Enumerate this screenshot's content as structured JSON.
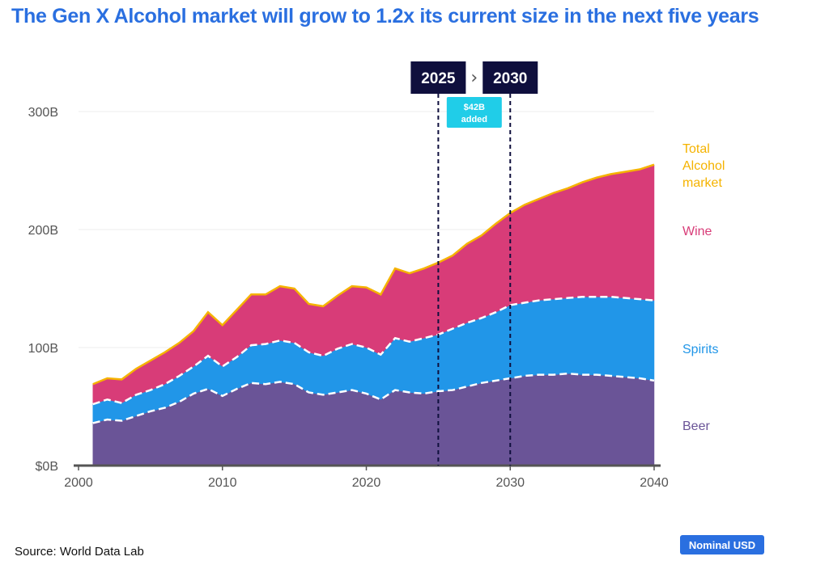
{
  "title": "The Gen X Alcohol market will grow to 1.2x its current size in the next five years",
  "source": "Source: World Data Lab",
  "badge": "Nominal USD",
  "colors": {
    "beer": "#6a5497",
    "spirits": "#2196e8",
    "wine": "#d83c78",
    "total": "#f5b300",
    "axis": "#555555",
    "year_box": "#0f0f3d",
    "added_box": "#20cde8"
  },
  "chart_data": {
    "type": "area",
    "title": "The Gen X Alcohol market will grow to 1.2x its current size in the next five years",
    "stacked": true,
    "xlabel": "",
    "ylabel": "",
    "xlim": [
      2000,
      2040
    ],
    "ylim": [
      0,
      300
    ],
    "y_ticks": [
      {
        "value": 0,
        "label": "$0B"
      },
      {
        "value": 100,
        "label": "100B"
      },
      {
        "value": 200,
        "label": "200B"
      },
      {
        "value": 300,
        "label": "300B"
      }
    ],
    "x_ticks": [
      2000,
      2010,
      2020,
      2030,
      2040
    ],
    "x": [
      2001,
      2002,
      2003,
      2004,
      2005,
      2006,
      2007,
      2008,
      2009,
      2010,
      2011,
      2012,
      2013,
      2014,
      2015,
      2016,
      2017,
      2018,
      2019,
      2020,
      2021,
      2022,
      2023,
      2024,
      2025,
      2026,
      2027,
      2028,
      2029,
      2030,
      2031,
      2032,
      2033,
      2034,
      2035,
      2036,
      2037,
      2038,
      2039,
      2040
    ],
    "series": [
      {
        "name": "Beer",
        "label": "Beer",
        "values": [
          36,
          39,
          38,
          42,
          46,
          49,
          54,
          61,
          65,
          59,
          65,
          70,
          69,
          71,
          69,
          62,
          60,
          62,
          64,
          61,
          56,
          64,
          62,
          61,
          63,
          64,
          67,
          70,
          72,
          74,
          76,
          77,
          77,
          78,
          77,
          77,
          76,
          75,
          74,
          72
        ]
      },
      {
        "name": "Spirits",
        "label": "Spirits",
        "values": [
          16,
          17,
          15,
          18,
          18,
          20,
          22,
          23,
          28,
          25,
          27,
          32,
          34,
          35,
          35,
          34,
          33,
          37,
          39,
          39,
          38,
          44,
          43,
          47,
          48,
          52,
          54,
          55,
          58,
          62,
          62,
          63,
          64,
          64,
          66,
          66,
          67,
          67,
          67,
          68
        ]
      },
      {
        "name": "Wine",
        "label": "Wine",
        "values": [
          17,
          18,
          20,
          22,
          25,
          27,
          28,
          30,
          37,
          35,
          40,
          43,
          42,
          46,
          46,
          41,
          42,
          45,
          49,
          51,
          51,
          59,
          58,
          59,
          61,
          62,
          67,
          70,
          75,
          78,
          83,
          86,
          90,
          93,
          97,
          101,
          104,
          107,
          110,
          115
        ]
      }
    ],
    "total_line": {
      "name": "Total Alcohol market",
      "label": "Total Alcohol market"
    },
    "markers": [
      {
        "year": 2025,
        "label": "2025"
      },
      {
        "year": 2030,
        "label": "2030"
      }
    ],
    "marker_separator": "›",
    "annotation": {
      "text_line1": "$42B",
      "text_line2": "added"
    }
  }
}
